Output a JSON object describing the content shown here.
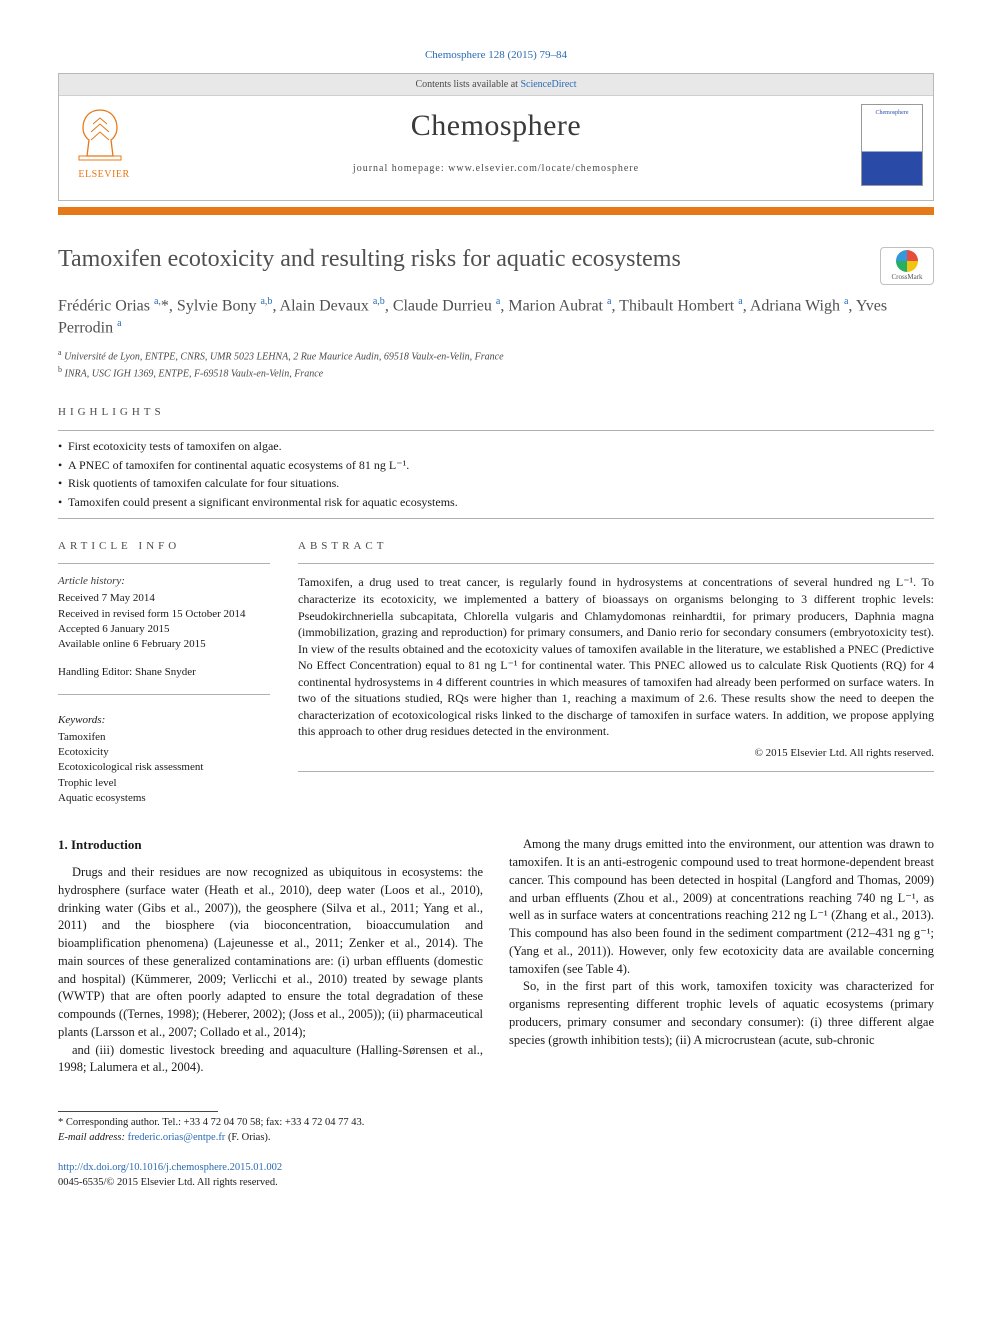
{
  "citation": "Chemosphere 128 (2015) 79–84",
  "header": {
    "contents_line_prefix": "Contents lists available at ",
    "contents_link": "ScienceDirect",
    "journal": "Chemosphere",
    "homepage_label": "journal homepage: www.elsevier.com/locate/chemosphere",
    "publisher_label": "ELSEVIER",
    "cover_thumb_label": "Chemosphere"
  },
  "colors": {
    "accent_orange": "#e67817",
    "link_blue": "#2a6ab5",
    "text_gray": "#505050"
  },
  "article": {
    "title": "Tamoxifen ecotoxicity and resulting risks for aquatic ecosystems",
    "crossmark_label": "CrossMark",
    "authors_html": "Frédéric Orias <sup>a,</sup>*, Sylvie Bony <sup>a,b</sup>, Alain Devaux <sup>a,b</sup>, Claude Durrieu <sup>a</sup>, Marion Aubrat <sup>a</sup>, Thibault Hombert <sup>a</sup>, Adriana Wigh <sup>a</sup>, Yves Perrodin <sup>a</sup>",
    "affiliations": [
      "a Université de Lyon, ENTPE, CNRS, UMR 5023 LEHNA, 2 Rue Maurice Audin, 69518 Vaulx-en-Velin, France",
      "b INRA, USC IGH 1369, ENTPE, F-69518 Vaulx-en-Velin, France"
    ]
  },
  "highlights": {
    "label": "HIGHLIGHTS",
    "items": [
      "First ecotoxicity tests of tamoxifen on algae.",
      "A PNEC of tamoxifen for continental aquatic ecosystems of 81 ng L⁻¹.",
      "Risk quotients of tamoxifen calculate for four situations.",
      "Tamoxifen could present a significant environmental risk for aquatic ecosystems."
    ]
  },
  "info": {
    "label": "ARTICLE INFO",
    "history_h": "Article history:",
    "history": [
      "Received 7 May 2014",
      "Received in revised form 15 October 2014",
      "Accepted 6 January 2015",
      "Available online 6 February 2015"
    ],
    "editor": "Handling Editor: Shane Snyder",
    "keywords_h": "Keywords:",
    "keywords": [
      "Tamoxifen",
      "Ecotoxicity",
      "Ecotoxicological risk assessment",
      "Trophic level",
      "Aquatic ecosystems"
    ]
  },
  "abstract": {
    "label": "ABSTRACT",
    "text": "Tamoxifen, a drug used to treat cancer, is regularly found in hydrosystems at concentrations of several hundred ng L⁻¹. To characterize its ecotoxicity, we implemented a battery of bioassays on organisms belonging to 3 different trophic levels: Pseudokirchneriella subcapitata, Chlorella vulgaris and Chlamydomonas reinhardtii, for primary producers, Daphnia magna (immobilization, grazing and reproduction) for primary consumers, and Danio rerio for secondary consumers (embryotoxicity test). In view of the results obtained and the ecotoxicity values of tamoxifen available in the literature, we established a PNEC (Predictive No Effect Concentration) equal to 81 ng L⁻¹ for continental water. This PNEC allowed us to calculate Risk Quotients (RQ) for 4 continental hydrosystems in 4 different countries in which measures of tamoxifen had already been performed on surface waters. In two of the situations studied, RQs were higher than 1, reaching a maximum of 2.6. These results show the need to deepen the characterization of ecotoxicological risks linked to the discharge of tamoxifen in surface waters. In addition, we propose applying this approach to other drug residues detected in the environment.",
    "copyright": "© 2015 Elsevier Ltd. All rights reserved."
  },
  "body": {
    "heading": "1. Introduction",
    "p1": "Drugs and their residues are now recognized as ubiquitous in ecosystems: the hydrosphere (surface water (Heath et al., 2010), deep water (Loos et al., 2010), drinking water (Gibs et al., 2007)), the geosphere (Silva et al., 2011; Yang et al., 2011) and the biosphere (via bioconcentration, bioaccumulation and bioamplification phenomena) (Lajeunesse et al., 2011; Zenker et al., 2014). The main sources of these generalized contaminations are: (i) urban effluents (domestic and hospital) (Kümmerer, 2009; Verlicchi et al., 2010) treated by sewage plants (WWTP) that are often poorly adapted to ensure the total degradation of these compounds ((Ternes, 1998); (Heberer, 2002); (Joss et al., 2005)); (ii) pharmaceutical plants (Larsson et al., 2007; Collado et al., 2014);",
    "p2": "and (iii) domestic livestock breeding and aquaculture (Halling-Sørensen et al., 1998; Lalumera et al., 2004).",
    "p3": "Among the many drugs emitted into the environment, our attention was drawn to tamoxifen. It is an anti-estrogenic compound used to treat hormone-dependent breast cancer. This compound has been detected in hospital (Langford and Thomas, 2009) and urban effluents (Zhou et al., 2009) at concentrations reaching 740 ng L⁻¹, as well as in surface waters at concentrations reaching 212 ng L⁻¹ (Zhang et al., 2013). This compound has also been found in the sediment compartment (212–431 ng g⁻¹; (Yang et al., 2011)). However, only few ecotoxicity data are available concerning tamoxifen (see Table 4).",
    "p4": "So, in the first part of this work, tamoxifen toxicity was characterized for organisms representing different trophic levels of aquatic ecosystems (primary producers, primary consumer and secondary consumer): (i) three different algae species (growth inhibition tests); (ii) A microcrustean (acute, sub-chronic"
  },
  "footer": {
    "corr_star": "*",
    "corr_text": " Corresponding author. Tel.: +33 4 72 04 70 58; fax: +33 4 72 04 77 43.",
    "email_label": "E-mail address: ",
    "email": "frederic.orias@entpe.fr",
    "email_owner": " (F. Orias).",
    "doi": "http://dx.doi.org/10.1016/j.chemosphere.2015.01.002",
    "issn_line": "0045-6535/© 2015 Elsevier Ltd. All rights reserved."
  }
}
